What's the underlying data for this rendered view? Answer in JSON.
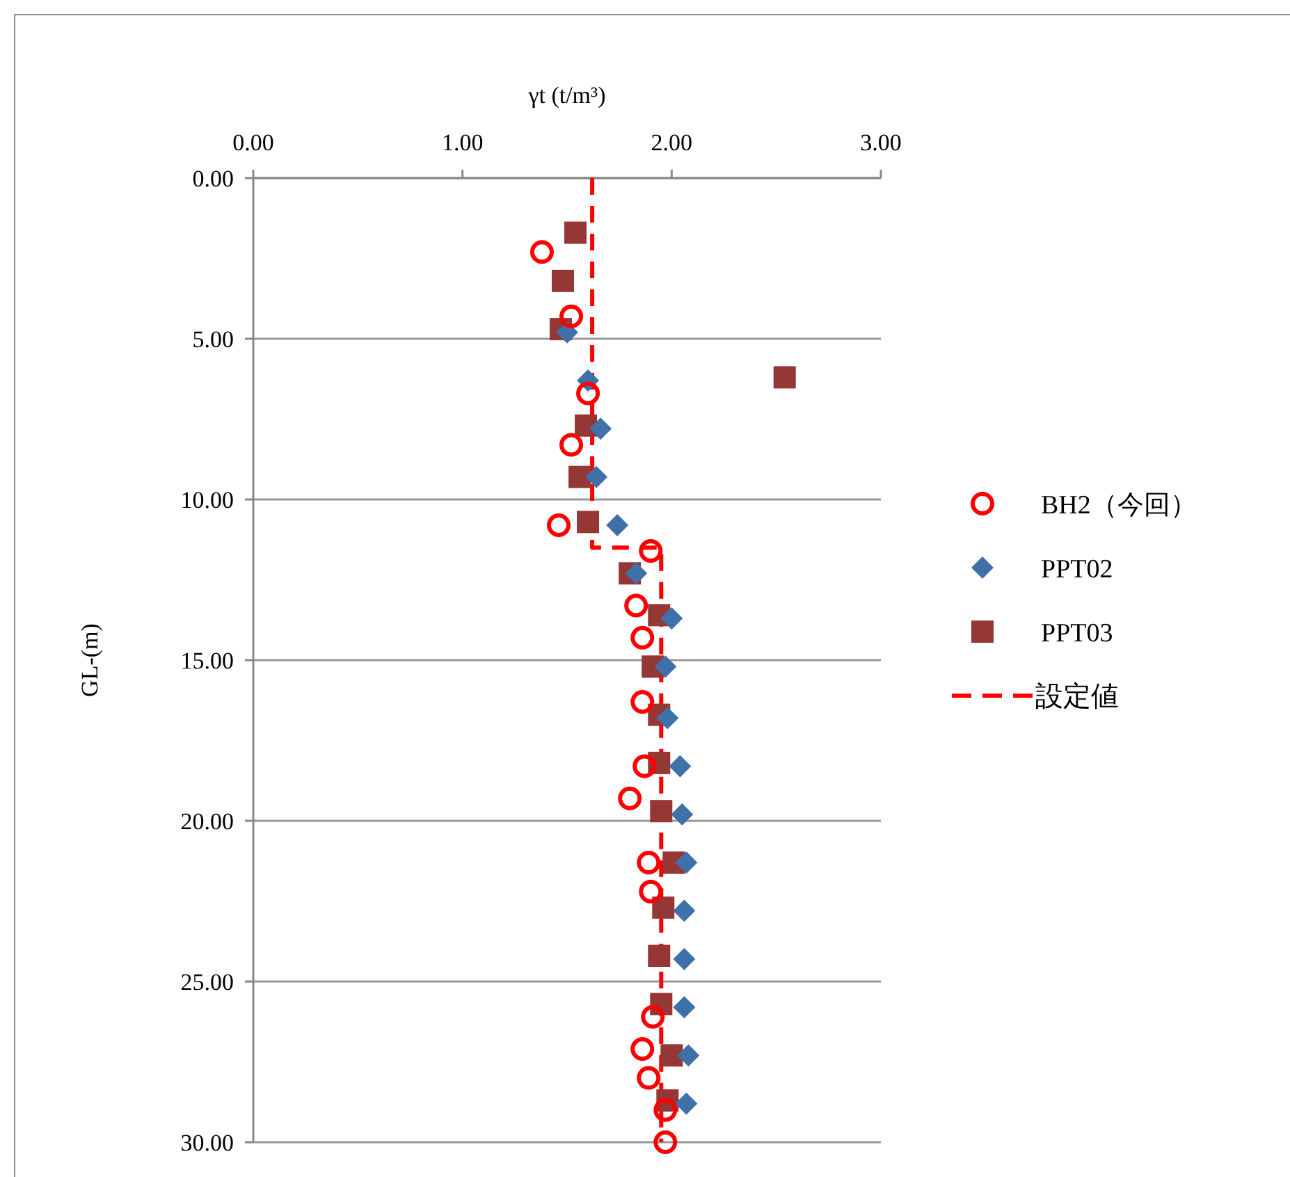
{
  "chart_data": {
    "type": "scatter",
    "xlabel": "γt (t/m³)",
    "ylabel": "GL-(m)",
    "xlim": [
      0,
      3
    ],
    "xticks": [
      {
        "value": 0,
        "label": "0.00"
      },
      {
        "value": 1,
        "label": "1.00"
      },
      {
        "value": 2,
        "label": "2.00"
      },
      {
        "value": 3,
        "label": "3.00"
      }
    ],
    "ylim": [
      30,
      0
    ],
    "yticks": [
      {
        "value": 0,
        "label": "0.00"
      },
      {
        "value": 5,
        "label": "5.00"
      },
      {
        "value": 10,
        "label": "10.00"
      },
      {
        "value": 15,
        "label": "15.00"
      },
      {
        "value": 20,
        "label": "20.00"
      },
      {
        "value": 25,
        "label": "25.00"
      },
      {
        "value": 30,
        "label": "30.00"
      }
    ],
    "grid": "y",
    "legend": "right",
    "series": [
      {
        "name": "BH2（今回）",
        "color": "#ff0000",
        "marker": "circle",
        "x": [
          1.38,
          1.52,
          1.6,
          1.52,
          1.46,
          1.9,
          1.83,
          1.86,
          1.86,
          1.87,
          1.8,
          1.89,
          1.9,
          1.91,
          1.86,
          1.89,
          1.97,
          1.97
        ],
        "values": [
          2.3,
          4.3,
          6.7,
          8.3,
          10.8,
          11.6,
          13.3,
          14.3,
          16.3,
          18.3,
          19.3,
          21.3,
          22.2,
          26.1,
          27.1,
          28.0,
          29.0,
          30.0
        ]
      },
      {
        "name": "PPT02",
        "color": "#4070a8",
        "marker": "diamond",
        "x": [
          1.5,
          1.6,
          1.66,
          1.64,
          1.74,
          1.83,
          2.0,
          1.97,
          1.98,
          2.04,
          2.05,
          2.07,
          2.06,
          2.06,
          2.06,
          2.08,
          2.07
        ],
        "values": [
          4.8,
          6.3,
          7.8,
          9.3,
          10.8,
          12.3,
          13.7,
          15.2,
          16.8,
          18.3,
          19.8,
          21.3,
          22.8,
          24.3,
          25.8,
          27.3,
          28.8
        ]
      },
      {
        "name": "PPT03",
        "color": "#953735",
        "marker": "square",
        "x": [
          1.54,
          1.48,
          1.47,
          2.54,
          1.59,
          1.56,
          1.6,
          1.8,
          1.94,
          1.91,
          1.94,
          1.94,
          1.95,
          2.01,
          1.96,
          1.94,
          1.95,
          2.0,
          1.98
        ],
        "values": [
          1.7,
          3.2,
          4.7,
          6.2,
          7.7,
          9.3,
          10.7,
          12.3,
          13.6,
          15.2,
          16.7,
          18.2,
          19.7,
          21.3,
          22.7,
          24.2,
          25.7,
          27.3,
          28.7
        ]
      },
      {
        "name": "設定値",
        "type": "line",
        "line_style": "dashed",
        "marker": "none",
        "color": "#ff0000",
        "x": [
          1.62,
          1.62,
          1.95,
          1.95
        ],
        "values": [
          0,
          11.5,
          11.5,
          30
        ]
      }
    ]
  }
}
